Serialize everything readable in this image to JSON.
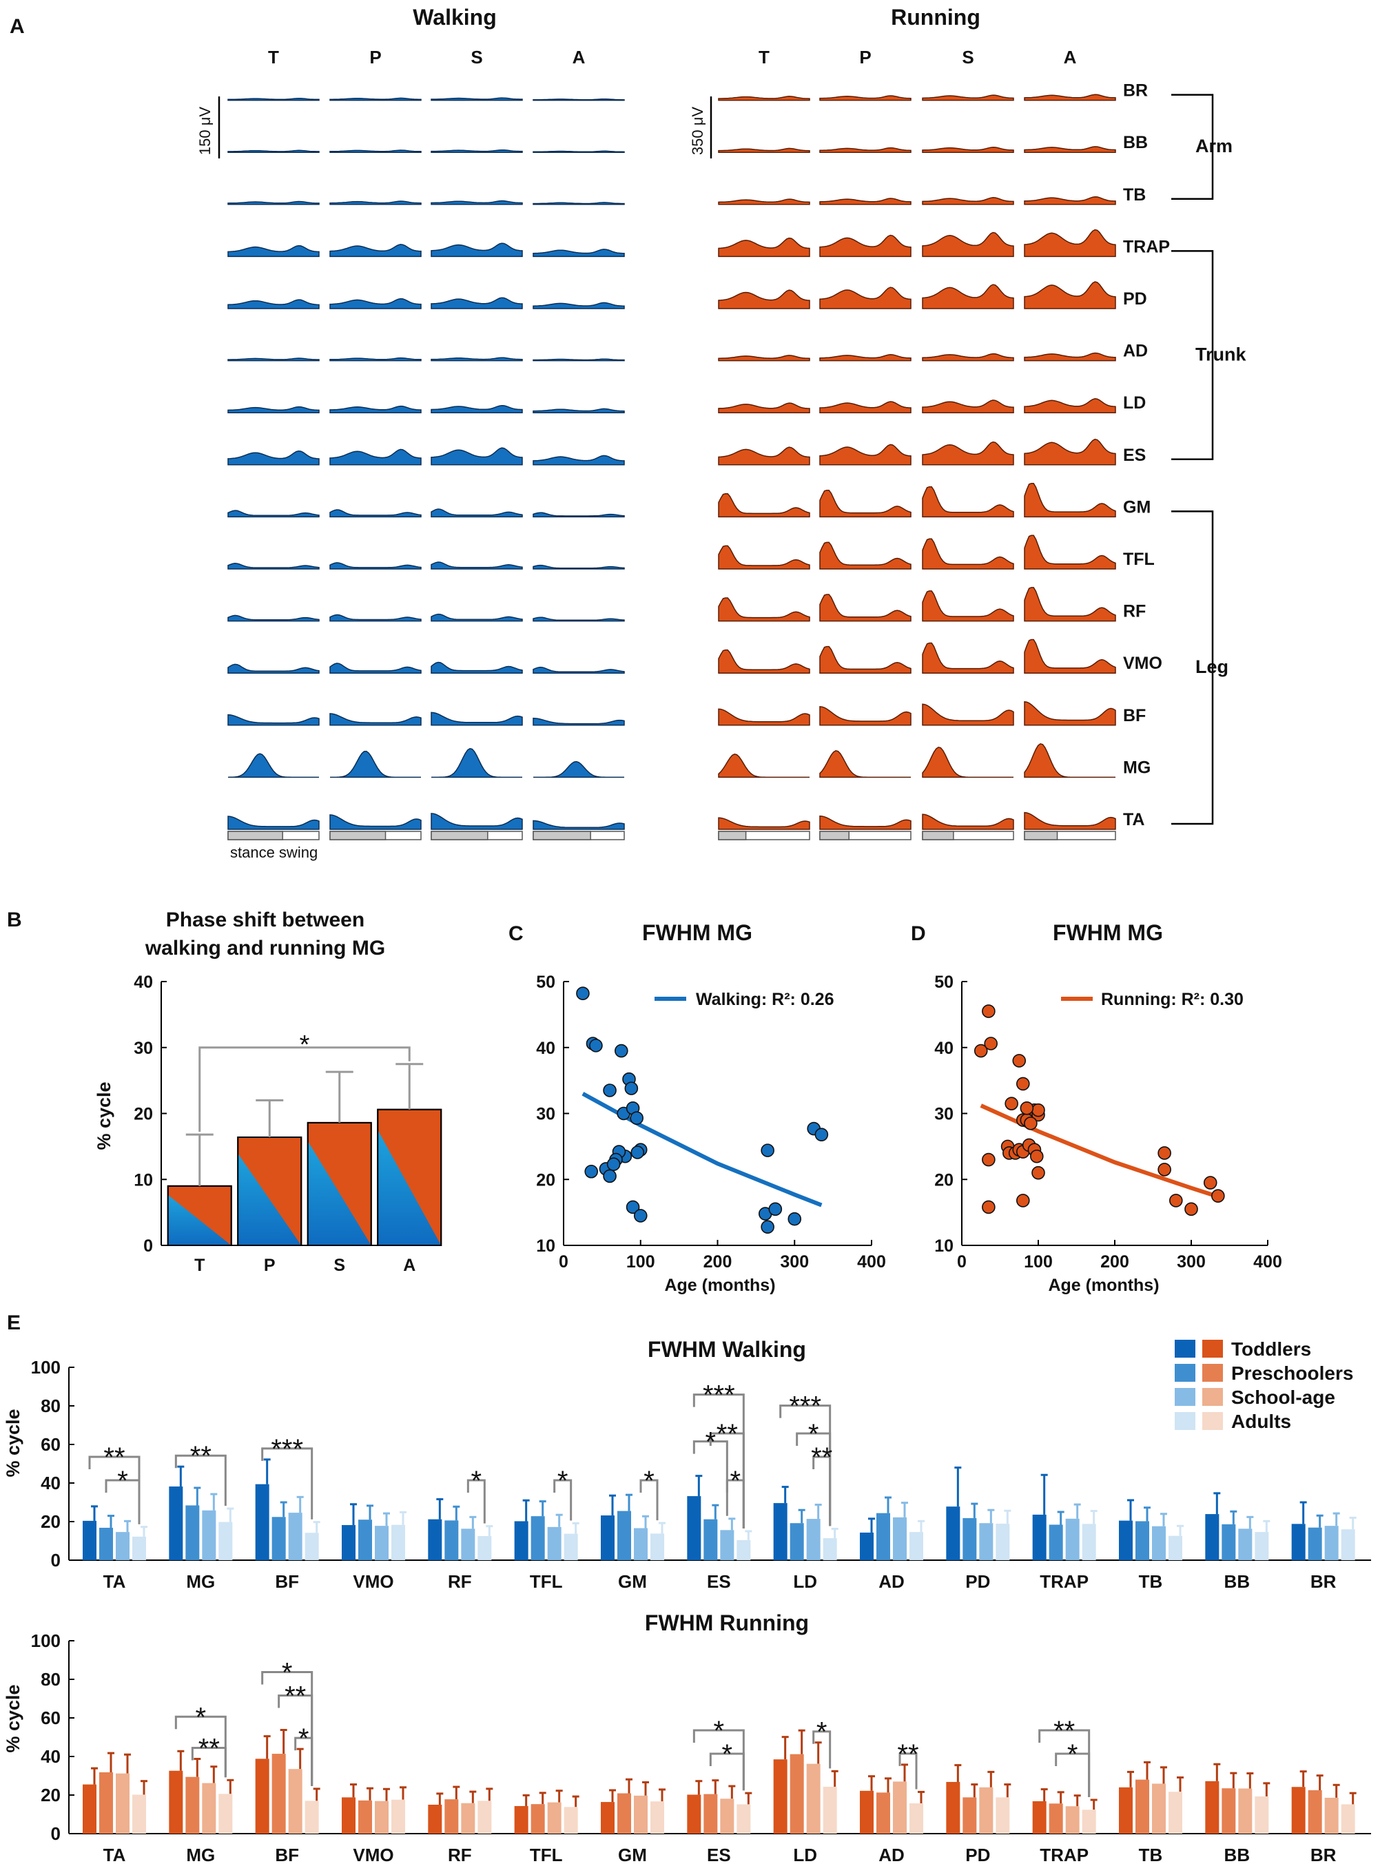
{
  "panel_labels": {
    "a": "A",
    "b": "B",
    "c": "C",
    "d": "D",
    "e": "E"
  },
  "colors": {
    "walk": "#1570bf",
    "walk_edge": "#0b2f57",
    "run": "#dd5218",
    "run_edge": "#5a1d05",
    "bar_gray": "#999999",
    "walk_group": [
      "#0b63b8",
      "#3f8fd0",
      "#86bbe6",
      "#cfe4f4"
    ],
    "run_group": [
      "#d9531a",
      "#e57f50",
      "#eeb08f",
      "#f6d9c8"
    ],
    "run_err": "#b33d10"
  },
  "panel_a": {
    "walking_title": "Walking",
    "running_title": "Running",
    "groups": [
      "T",
      "P",
      "S",
      "A"
    ],
    "muscles": [
      "BR",
      "BB",
      "TB",
      "TRAP",
      "PD",
      "AD",
      "LD",
      "ES",
      "GM",
      "TFL",
      "RF",
      "VMO",
      "BF",
      "MG",
      "TA"
    ],
    "walk_scale_label": "150 μV",
    "run_scale_label": "350 μV",
    "phase_labels": "stance swing",
    "body_groups": [
      {
        "name": "Arm",
        "from": "BR",
        "to": "TB"
      },
      {
        "name": "Trunk",
        "from": "TRAP",
        "to": "ES"
      },
      {
        "name": "Leg",
        "from": "GM",
        "to": "TA"
      }
    ]
  },
  "chart_data": [
    {
      "id": "B",
      "type": "bar",
      "title_lines": [
        "Phase shift between",
        "walking and running MG"
      ],
      "categories": [
        "T",
        "P",
        "S",
        "A"
      ],
      "values": [
        9,
        16.4,
        18.6,
        20.6
      ],
      "errors": [
        7.8,
        5.6,
        7.7,
        6.9
      ],
      "ylabel": "% cycle",
      "ylim": [
        0,
        40
      ],
      "yticks": [
        0,
        10,
        20,
        30,
        40
      ],
      "significance": [
        {
          "from": "T",
          "to": "A",
          "label": "*"
        }
      ]
    },
    {
      "id": "C",
      "type": "scatter",
      "title": "FWHM MG",
      "legend": "Walking: R²: 0.26",
      "xlabel": "Age (months)",
      "xlim": [
        0,
        400
      ],
      "ylim": [
        10,
        50
      ],
      "xticks": [
        0,
        100,
        200,
        300,
        400
      ],
      "yticks": [
        10,
        20,
        30,
        40,
        50
      ],
      "points": [
        [
          25,
          48.2
        ],
        [
          38,
          40.6
        ],
        [
          42,
          40.3
        ],
        [
          36,
          21.2
        ],
        [
          75,
          39.5
        ],
        [
          60,
          33.5
        ],
        [
          85,
          35.2
        ],
        [
          88,
          33.8
        ],
        [
          78,
          30
        ],
        [
          90,
          30.8
        ],
        [
          95,
          29.3
        ],
        [
          80,
          23.5
        ],
        [
          72,
          24.2
        ],
        [
          68,
          23
        ],
        [
          100,
          24.5
        ],
        [
          96,
          24.1
        ],
        [
          55,
          21.6
        ],
        [
          65,
          22.3
        ],
        [
          60,
          20.5
        ],
        [
          90,
          15.8
        ],
        [
          100,
          14.5
        ],
        [
          265,
          24.4
        ],
        [
          262,
          14.8
        ],
        [
          275,
          15.5
        ],
        [
          265,
          12.8
        ],
        [
          300,
          14
        ],
        [
          325,
          27.7
        ],
        [
          335,
          26.8
        ]
      ],
      "fit": [
        [
          25,
          33
        ],
        [
          100,
          28.2
        ],
        [
          200,
          22.4
        ],
        [
          300,
          17.7
        ],
        [
          335,
          16.1
        ]
      ]
    },
    {
      "id": "D",
      "type": "scatter",
      "title": "FWHM MG",
      "legend": "Running: R²: 0.30",
      "xlabel": "Age (months)",
      "xlim": [
        0,
        400
      ],
      "ylim": [
        10,
        50
      ],
      "xticks": [
        0,
        100,
        200,
        300,
        400
      ],
      "yticks": [
        10,
        20,
        30,
        40,
        50
      ],
      "points": [
        [
          25,
          39.5
        ],
        [
          38,
          40.6
        ],
        [
          35,
          45.5
        ],
        [
          35,
          23
        ],
        [
          35,
          15.8
        ],
        [
          75,
          38
        ],
        [
          80,
          34.5
        ],
        [
          65,
          31.5
        ],
        [
          95,
          30.5
        ],
        [
          100,
          29.8
        ],
        [
          100,
          30.5
        ],
        [
          80,
          29
        ],
        [
          85,
          29
        ],
        [
          90,
          28.5
        ],
        [
          85,
          30.8
        ],
        [
          60,
          25
        ],
        [
          62,
          24
        ],
        [
          70,
          24
        ],
        [
          75,
          24.5
        ],
        [
          80,
          24.2
        ],
        [
          88,
          25.2
        ],
        [
          95,
          24.5
        ],
        [
          98,
          23.5
        ],
        [
          100,
          21
        ],
        [
          80,
          16.8
        ],
        [
          265,
          24
        ],
        [
          265,
          21.5
        ],
        [
          280,
          16.8
        ],
        [
          300,
          15.5
        ],
        [
          325,
          19.5
        ],
        [
          335,
          17.5
        ]
      ],
      "fit": [
        [
          25,
          31.2
        ],
        [
          100,
          27.3
        ],
        [
          200,
          22.6
        ],
        [
          300,
          18.7
        ],
        [
          335,
          17.4
        ]
      ]
    },
    {
      "id": "E-walking",
      "type": "bar",
      "title": "FWHM Walking",
      "categories": [
        "TA",
        "MG",
        "BF",
        "VMO",
        "RF",
        "TFL",
        "GM",
        "ES",
        "LD",
        "AD",
        "PD",
        "TRAP",
        "TB",
        "BB",
        "BR"
      ],
      "series": [
        {
          "name": "Toddlers",
          "values": [
            20.4,
            38.2,
            39.4,
            18.2,
            21.2,
            20.2,
            23.2,
            33.2,
            29.6,
            14.3,
            27.8,
            23.6,
            20.5,
            23.9,
            18.8
          ],
          "errors": [
            7.5,
            10.3,
            12.8,
            10.8,
            10.4,
            10.8,
            10.3,
            10.5,
            8.4,
            7.2,
            20.2,
            20.6,
            10.6,
            10.8,
            11.2
          ]
        },
        {
          "name": "Preschoolers",
          "values": [
            16.8,
            28.4,
            22.4,
            21,
            20.6,
            22.8,
            25.5,
            21.2,
            19.2,
            24.4,
            21.8,
            18.4,
            20.2,
            18.6,
            16.9
          ]
        },
        {
          "name": "School-age",
          "values": [
            14.6,
            25.8,
            24.6,
            17.8,
            16.3,
            17.2,
            16.6,
            15.6,
            21.4,
            22.2,
            19.2,
            21.5,
            17.6,
            16.3,
            17.8
          ]
        },
        {
          "name": "Adults",
          "values": [
            12.2,
            19.8,
            14.2,
            18.3,
            12.5,
            13.7,
            13.8,
            10.4,
            11.4,
            14.6,
            18.9,
            18.8,
            12.6,
            14.6,
            16
          ]
        }
      ],
      "ylabel": "% cycle",
      "ylim": [
        0,
        100
      ],
      "yticks": [
        0,
        20,
        40,
        60,
        80,
        100
      ],
      "significance": [
        {
          "cat": "TA",
          "from": 0,
          "to": 3,
          "level": 1,
          "label": "**"
        },
        {
          "cat": "TA",
          "from": 1,
          "to": 3,
          "level": 0,
          "label": "*"
        },
        {
          "cat": "MG",
          "from": 0,
          "to": 3,
          "level": 0,
          "label": "**"
        },
        {
          "cat": "BF",
          "from": 0,
          "to": 3,
          "level": 0,
          "label": "***"
        },
        {
          "cat": "RF",
          "from": 2,
          "to": 3,
          "level": 0,
          "label": "*"
        },
        {
          "cat": "TFL",
          "from": 2,
          "to": 3,
          "level": 0,
          "label": "*"
        },
        {
          "cat": "GM",
          "from": 2,
          "to": 3,
          "level": 0,
          "label": "*"
        },
        {
          "cat": "ES",
          "from": 0,
          "to": 3,
          "level": 3,
          "label": "***"
        },
        {
          "cat": "ES",
          "from": 1,
          "to": 3,
          "level": 2,
          "label": "**"
        },
        {
          "cat": "ES",
          "from": 0,
          "to": 2,
          "level": 1,
          "label": "*"
        },
        {
          "cat": "ES",
          "from": 2,
          "to": 3,
          "level": 0,
          "label": "*"
        },
        {
          "cat": "LD",
          "from": 0,
          "to": 3,
          "level": 3,
          "label": "***"
        },
        {
          "cat": "LD",
          "from": 1,
          "to": 3,
          "level": 2,
          "label": "*"
        },
        {
          "cat": "LD",
          "from": 2,
          "to": 3,
          "level": 1,
          "label": "**"
        }
      ]
    },
    {
      "id": "E-running",
      "type": "bar",
      "title": "FWHM Running",
      "categories": [
        "TA",
        "MG",
        "BF",
        "VMO",
        "RF",
        "TFL",
        "GM",
        "ES",
        "LD",
        "AD",
        "PD",
        "TRAP",
        "TB",
        "BB",
        "BR"
      ],
      "series": [
        {
          "name": "Toddlers",
          "values": [
            25.5,
            32.6,
            38.8,
            18.8,
            15,
            14.3,
            16.4,
            20.2,
            38.5,
            22.2,
            26.8,
            16.8,
            24,
            27.2,
            24.2
          ]
        },
        {
          "name": "Preschoolers",
          "values": [
            31.8,
            29.4,
            41.4,
            17.2,
            17.8,
            15.3,
            20.9,
            20.5,
            41.2,
            21.3,
            18.8,
            15.6,
            28,
            23.5,
            22.5
          ]
        },
        {
          "name": "School-age",
          "values": [
            31.2,
            26.2,
            33.5,
            16.9,
            15.8,
            16.2,
            19.7,
            18.1,
            36.2,
            27,
            24,
            14.2,
            25.9,
            23.4,
            18.6
          ]
        },
        {
          "name": "Adults",
          "values": [
            20.2,
            20.6,
            17,
            17.6,
            17,
            13.8,
            16.7,
            15.2,
            24.3,
            15.7,
            18.8,
            12.4,
            21.7,
            19.3,
            15.2
          ]
        }
      ],
      "ylabel": "% cycle",
      "ylim": [
        0,
        100
      ],
      "yticks": [
        0,
        20,
        40,
        60,
        80,
        100
      ],
      "significance": [
        {
          "cat": "MG",
          "from": 0,
          "to": 3,
          "level": 1,
          "label": "*"
        },
        {
          "cat": "MG",
          "from": 1,
          "to": 3,
          "level": 0,
          "label": "**"
        },
        {
          "cat": "BF",
          "from": 0,
          "to": 3,
          "level": 2,
          "label": "*"
        },
        {
          "cat": "BF",
          "from": 1,
          "to": 3,
          "level": 1,
          "label": "**"
        },
        {
          "cat": "BF",
          "from": 2,
          "to": 3,
          "level": 0,
          "label": "*"
        },
        {
          "cat": "ES",
          "from": 0,
          "to": 3,
          "level": 1,
          "label": "*"
        },
        {
          "cat": "ES",
          "from": 1,
          "to": 3,
          "level": 0,
          "label": "*"
        },
        {
          "cat": "LD",
          "from": 2,
          "to": 3,
          "level": 0,
          "label": "*"
        },
        {
          "cat": "AD",
          "from": 2,
          "to": 3,
          "level": 0,
          "label": "**"
        },
        {
          "cat": "TRAP",
          "from": 0,
          "to": 3,
          "level": 1,
          "label": "**"
        },
        {
          "cat": "TRAP",
          "from": 1,
          "to": 3,
          "level": 0,
          "label": "*"
        }
      ]
    }
  ],
  "legend_e": [
    "Toddlers",
    "Preschoolers",
    "School-age",
    "Adults"
  ]
}
